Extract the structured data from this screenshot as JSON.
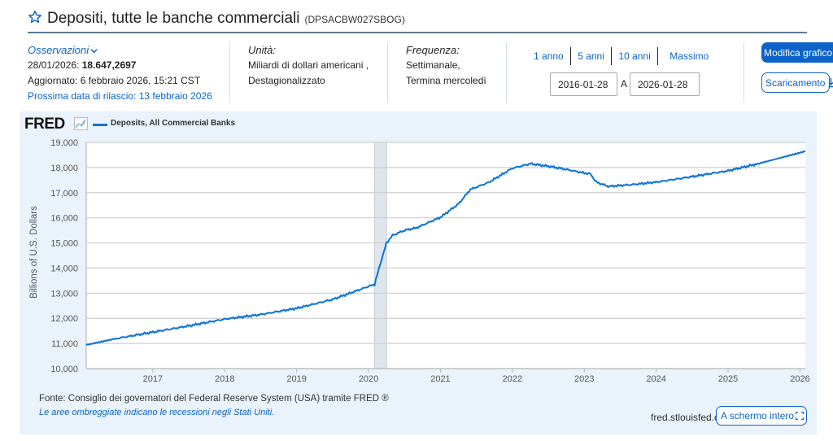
{
  "header": {
    "title": "Depositi, tutte le banche commerciali",
    "series_id": "(DPSACBW027SBOG)"
  },
  "observations": {
    "label": "Osservazioni",
    "date": "28/01/2026:",
    "value": "18.647,2697",
    "updated": "Aggiornato: 6 febbraio 2026, 15:21 CST",
    "next_release": "Prossima data di rilascio: 13 febbraio 2026"
  },
  "units": {
    "label": "Unità:",
    "line1": "Miliardi di dollari americani ,",
    "line2": "Destagionalizzato"
  },
  "frequency": {
    "label": "Frequenza:",
    "line1": "Settimanale,",
    "line2": "Termina mercoledì"
  },
  "range": {
    "links": [
      "1 anno",
      "5 anni",
      "10 anni",
      "Massimo"
    ],
    "start": "2016-01-28",
    "separator": "A",
    "end": "2026-01-28"
  },
  "buttons": {
    "edit_graph": "Modifica grafico",
    "download": "Scaricamento",
    "fullscreen": "A schermo intero"
  },
  "chart_panel": {
    "logo": "FRED",
    "legend": "Deposits, All Commercial Banks",
    "ylabel": "Billions of U.S. Dollars",
    "source": "Fonte: Consiglio dei governatori del Federal Reserve System (USA) tramite FRED ®",
    "recession_note": "Le aree ombreggiate indicano le recessioni negli Stati Uniti.",
    "url": "fred.stlouisfed.o"
  },
  "colors": {
    "accent": "#0b63c8",
    "line": "#0b73d9",
    "panel_bg": "#eaf2fb",
    "recession": "#dfe5ec",
    "grid": "#cfcfcf"
  },
  "chart_data": {
    "type": "line",
    "title": "Deposits, All Commercial Banks",
    "xlabel": "",
    "ylabel": "Billions of U.S. Dollars",
    "ylim": [
      10000,
      19000
    ],
    "xlim": [
      "2016-01-28",
      "2026-01-28"
    ],
    "yticks": [
      10000,
      11000,
      12000,
      13000,
      14000,
      15000,
      16000,
      17000,
      18000,
      19000
    ],
    "ytick_labels": [
      "10,000",
      "11,000",
      "12,000",
      "13,000",
      "14,000",
      "15,000",
      "16,000",
      "17,000",
      "18,000",
      "19,000"
    ],
    "xticks": [
      "2017",
      "2018",
      "2019",
      "2020",
      "2021",
      "2022",
      "2023",
      "2024",
      "2025",
      "2026"
    ],
    "grid": true,
    "legend_position": "top-left",
    "recessions": [
      {
        "start": "2020-02",
        "end": "2020-04"
      }
    ],
    "series": [
      {
        "name": "Deposits, All Commercial Banks",
        "x": [
          "2016-01-28",
          "2016-07",
          "2017-01",
          "2017-07",
          "2018-01",
          "2018-07",
          "2019-01",
          "2019-07",
          "2020-01",
          "2020-02",
          "2020-03",
          "2020-04",
          "2020-05",
          "2020-07",
          "2020-09",
          "2021-01",
          "2021-04",
          "2021-06",
          "2021-09",
          "2022-01",
          "2022-04",
          "2022-07",
          "2022-09",
          "2023-01",
          "2023-02",
          "2023-03",
          "2023-05",
          "2023-09",
          "2024-01",
          "2024-06",
          "2025-01",
          "2025-06",
          "2026-01-28"
        ],
        "values": [
          10940,
          11200,
          11450,
          11700,
          11970,
          12150,
          12400,
          12750,
          13270,
          13350,
          14200,
          15000,
          15300,
          15500,
          15600,
          16020,
          16550,
          17130,
          17400,
          17970,
          18150,
          18050,
          17970,
          17780,
          17750,
          17420,
          17250,
          17320,
          17420,
          17600,
          17870,
          18150,
          18647
        ]
      }
    ]
  }
}
